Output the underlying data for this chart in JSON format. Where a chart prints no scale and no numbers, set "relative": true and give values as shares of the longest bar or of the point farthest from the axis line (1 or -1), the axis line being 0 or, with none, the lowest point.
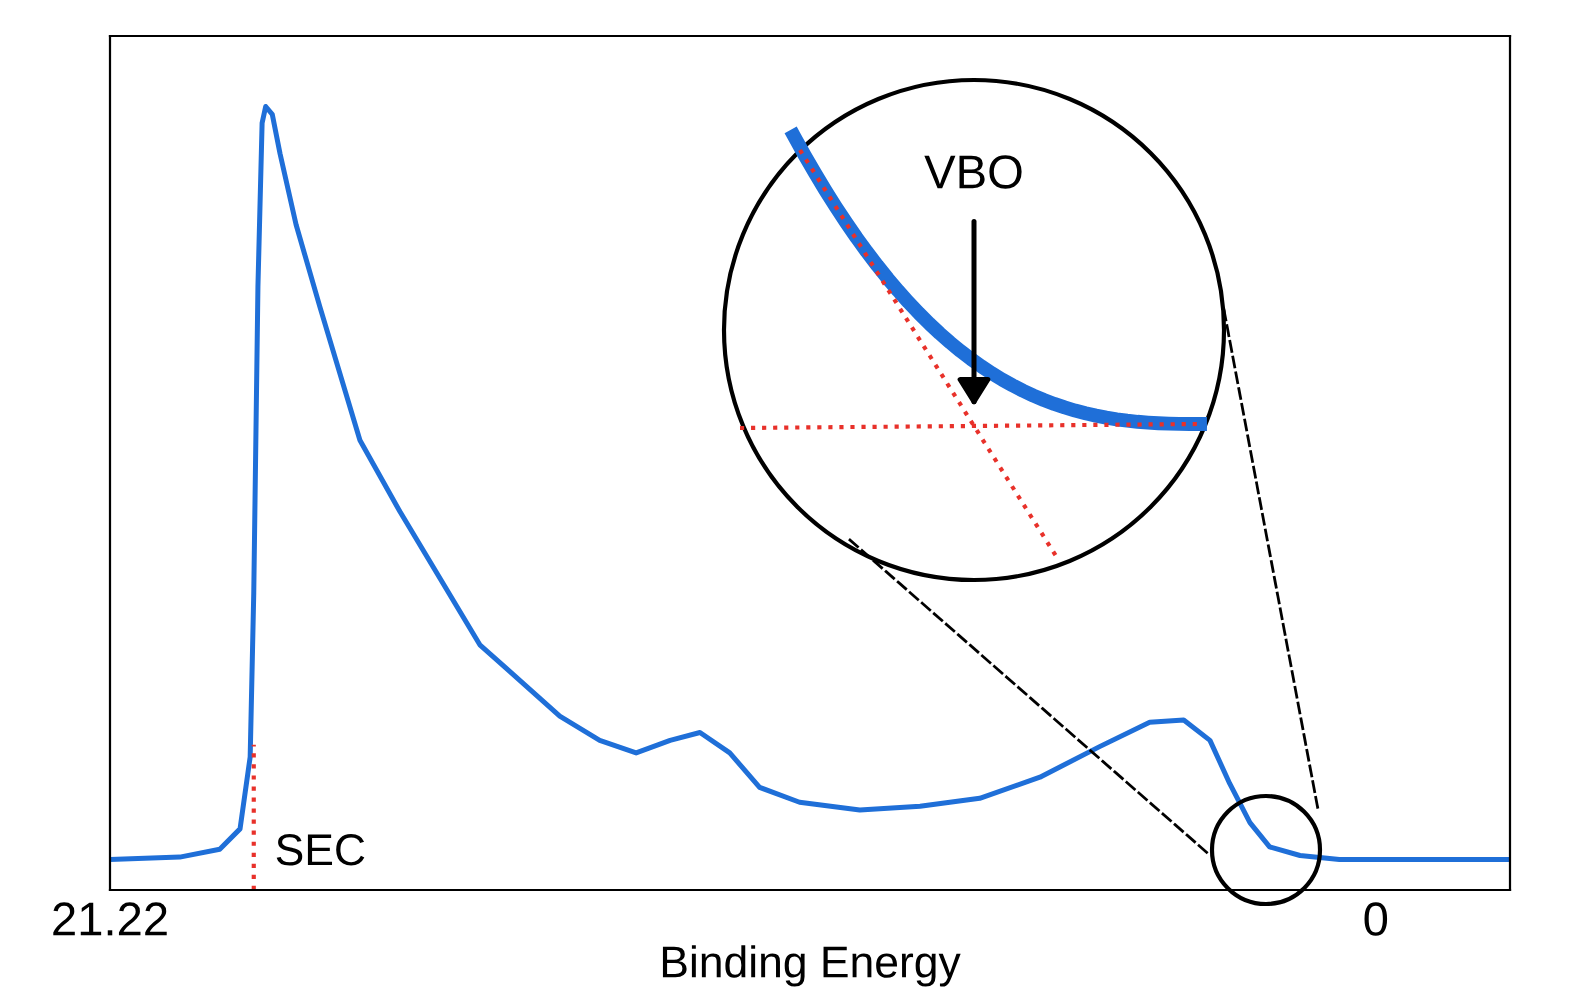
{
  "chart_data": {
    "type": "line",
    "xlabel": "Binding Energy",
    "relative": true,
    "xlim": [
      21.22,
      -2.25
    ],
    "xticks": [
      21.22,
      0
    ],
    "grid": false,
    "legend": false,
    "marker": "none",
    "line_style": "solid",
    "x": [
      21.22,
      20.05,
      19.38,
      19.04,
      18.87,
      18.81,
      18.74,
      18.67,
      18.61,
      18.5,
      18.37,
      18.1,
      17.7,
      17.03,
      16.36,
      15.02,
      13.68,
      13.01,
      12.4,
      11.83,
      11.33,
      10.83,
      10.33,
      9.66,
      8.65,
      7.64,
      6.64,
      5.63,
      4.63,
      3.79,
      3.22,
      2.78,
      2.45,
      2.11,
      1.78,
      1.27,
      0.61,
      -0.4,
      -1.07,
      -2.25
    ],
    "series": [
      {
        "color": "#1f6fd8",
        "values": [
          0.039,
          0.042,
          0.052,
          0.078,
          0.17,
          0.379,
          0.77,
          0.979,
          1.0,
          0.99,
          0.94,
          0.849,
          0.744,
          0.574,
          0.483,
          0.313,
          0.222,
          0.191,
          0.175,
          0.191,
          0.201,
          0.175,
          0.131,
          0.112,
          0.102,
          0.107,
          0.117,
          0.144,
          0.183,
          0.214,
          0.217,
          0.191,
          0.136,
          0.086,
          0.055,
          0.044,
          0.039,
          0.039,
          0.039,
          0.039
        ]
      }
    ],
    "ref_lines": [
      {
        "axis": "x",
        "value": 18.81,
        "label": "SEC",
        "color": "#e8312a",
        "line_style": "dotted"
      }
    ],
    "annotations": [
      "VBO"
    ]
  }
}
